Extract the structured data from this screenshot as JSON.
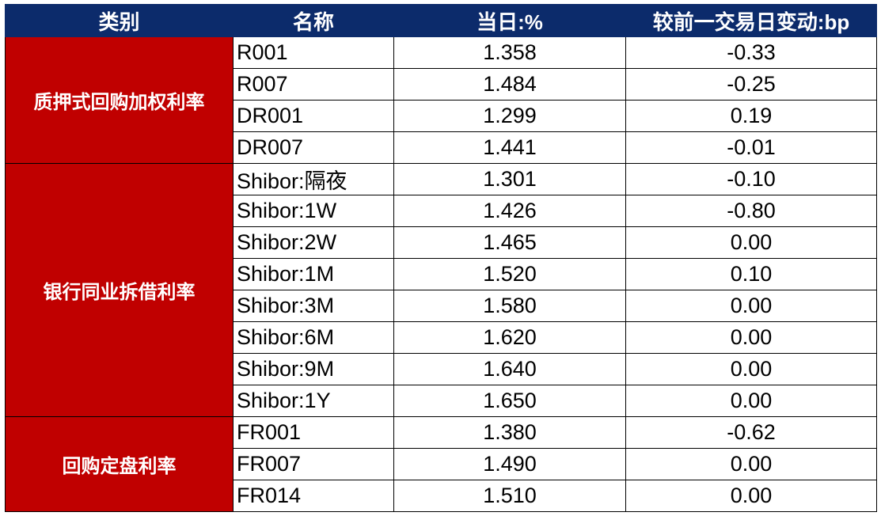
{
  "colors": {
    "header_bg": "#0c2b6b",
    "category_bg": "#c00000"
  },
  "headers": [
    "类别",
    "名称",
    "当日:%",
    "较前一交易日变动:bp"
  ],
  "groups": [
    {
      "category": "质押式回购加权利率",
      "rows": [
        {
          "name": "R001",
          "value": "1.358",
          "change": "-0.33"
        },
        {
          "name": "R007",
          "value": "1.484",
          "change": "-0.25"
        },
        {
          "name": "DR001",
          "value": "1.299",
          "change": "0.19"
        },
        {
          "name": "DR007",
          "value": "1.441",
          "change": "-0.01"
        }
      ]
    },
    {
      "category": "银行同业拆借利率",
      "rows": [
        {
          "name": "Shibor:隔夜",
          "value": "1.301",
          "change": "-0.10"
        },
        {
          "name": "Shibor:1W",
          "value": "1.426",
          "change": "-0.80"
        },
        {
          "name": "Shibor:2W",
          "value": "1.465",
          "change": "0.00"
        },
        {
          "name": "Shibor:1M",
          "value": "1.520",
          "change": "0.10"
        },
        {
          "name": "Shibor:3M",
          "value": "1.580",
          "change": "0.00"
        },
        {
          "name": "Shibor:6M",
          "value": "1.620",
          "change": "0.00"
        },
        {
          "name": "Shibor:9M",
          "value": "1.640",
          "change": "0.00"
        },
        {
          "name": "Shibor:1Y",
          "value": "1.650",
          "change": "0.00"
        }
      ]
    },
    {
      "category": "回购定盘利率",
      "rows": [
        {
          "name": "FR001",
          "value": "1.380",
          "change": "-0.62"
        },
        {
          "name": "FR007",
          "value": "1.490",
          "change": "0.00"
        },
        {
          "name": "FR014",
          "value": "1.510",
          "change": "0.00"
        }
      ]
    }
  ]
}
